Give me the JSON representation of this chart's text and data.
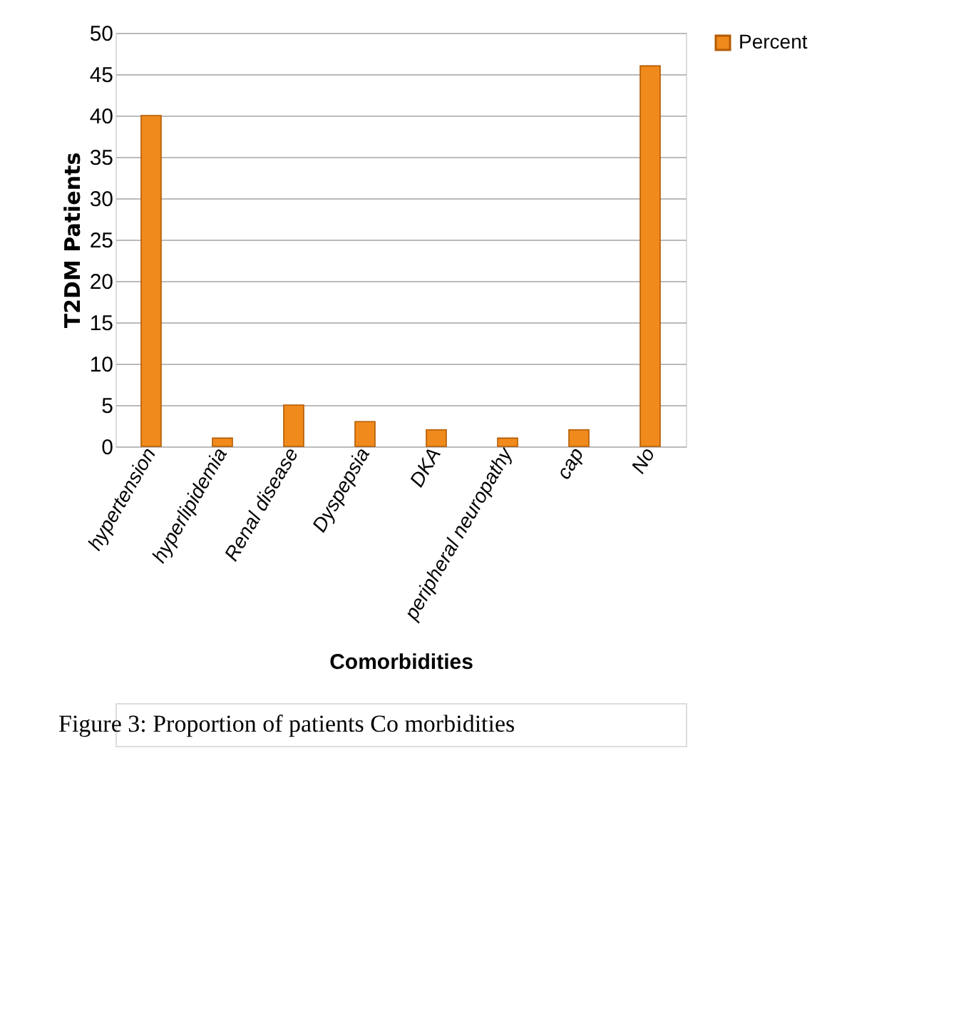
{
  "chart_data": {
    "type": "bar",
    "xlabel": "Comorbidities",
    "ylabel": "T2DM Patients",
    "categories": [
      "hypertension",
      "hyperlipidemia",
      "Renal disease",
      "Dyspepsia",
      "DKA",
      "peripheral neuropathy",
      "cap",
      "No"
    ],
    "series": [
      {
        "name": "Percent",
        "color": "#f08a1c",
        "values": [
          40,
          1,
          5,
          3,
          2,
          1,
          2,
          46
        ]
      }
    ],
    "ylim": [
      0,
      50
    ],
    "yticks": [
      0,
      5,
      10,
      15,
      20,
      25,
      30,
      35,
      40,
      45,
      50
    ],
    "grid": "y",
    "legend": "right",
    "annotations": [
      "Figure 3: Proportion of patients Co morbidities"
    ]
  }
}
